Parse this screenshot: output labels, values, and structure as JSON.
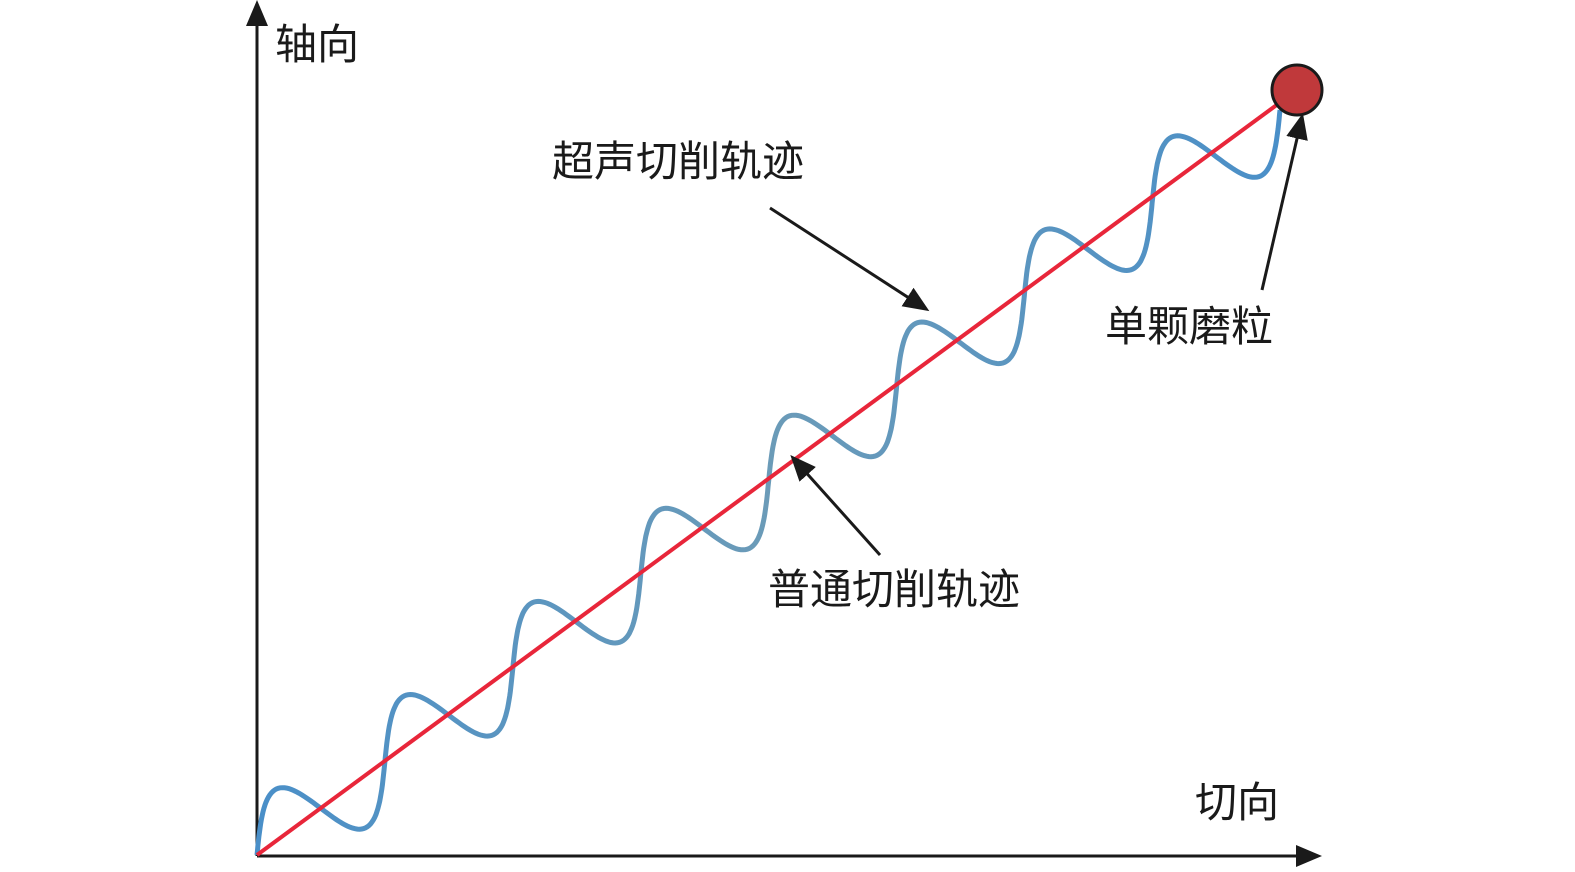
{
  "axes": {
    "y_label": "轴向",
    "x_label": "切向"
  },
  "annotations": [
    {
      "label": "超声切削轨迹"
    },
    {
      "label": "普通切削轨迹"
    },
    {
      "label": "单颗磨粒"
    }
  ]
}
